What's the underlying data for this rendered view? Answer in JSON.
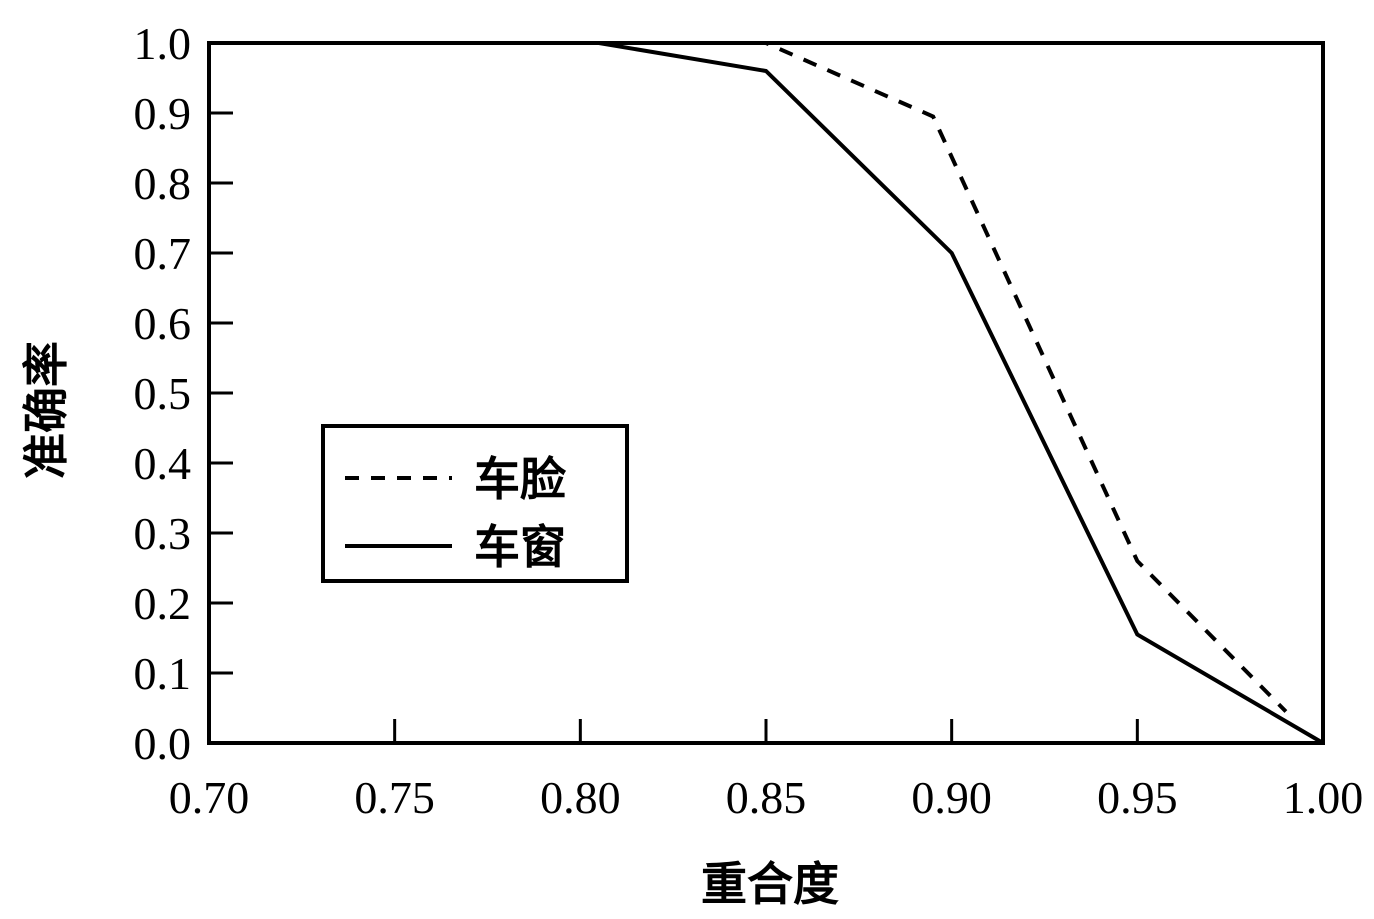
{
  "chart_data": {
    "type": "line",
    "xlabel": "重合度",
    "ylabel": "准确率",
    "xlim": [
      0.7,
      1.0
    ],
    "ylim": [
      0.0,
      1.0
    ],
    "x_ticks": [
      "0.70",
      "0.75",
      "0.80",
      "0.85",
      "0.90",
      "0.95",
      "1.00"
    ],
    "y_ticks": [
      "0.0",
      "0.1",
      "0.2",
      "0.3",
      "0.4",
      "0.5",
      "0.6",
      "0.7",
      "0.8",
      "0.9",
      "1.0"
    ],
    "grid": false,
    "legend_position": "center-left",
    "series": [
      {
        "name": "车脸",
        "style": "dashed",
        "color": "#000000",
        "x": [
          0.7,
          0.8,
          0.85,
          0.895,
          0.95,
          0.99
        ],
        "y": [
          1.0,
          1.0,
          1.0,
          0.895,
          0.26,
          0.045
        ]
      },
      {
        "name": "车窗",
        "style": "solid",
        "color": "#000000",
        "x": [
          0.7,
          0.805,
          0.85,
          0.9,
          0.95,
          1.0
        ],
        "y": [
          1.0,
          1.0,
          0.96,
          0.7,
          0.155,
          0.0
        ]
      }
    ]
  }
}
